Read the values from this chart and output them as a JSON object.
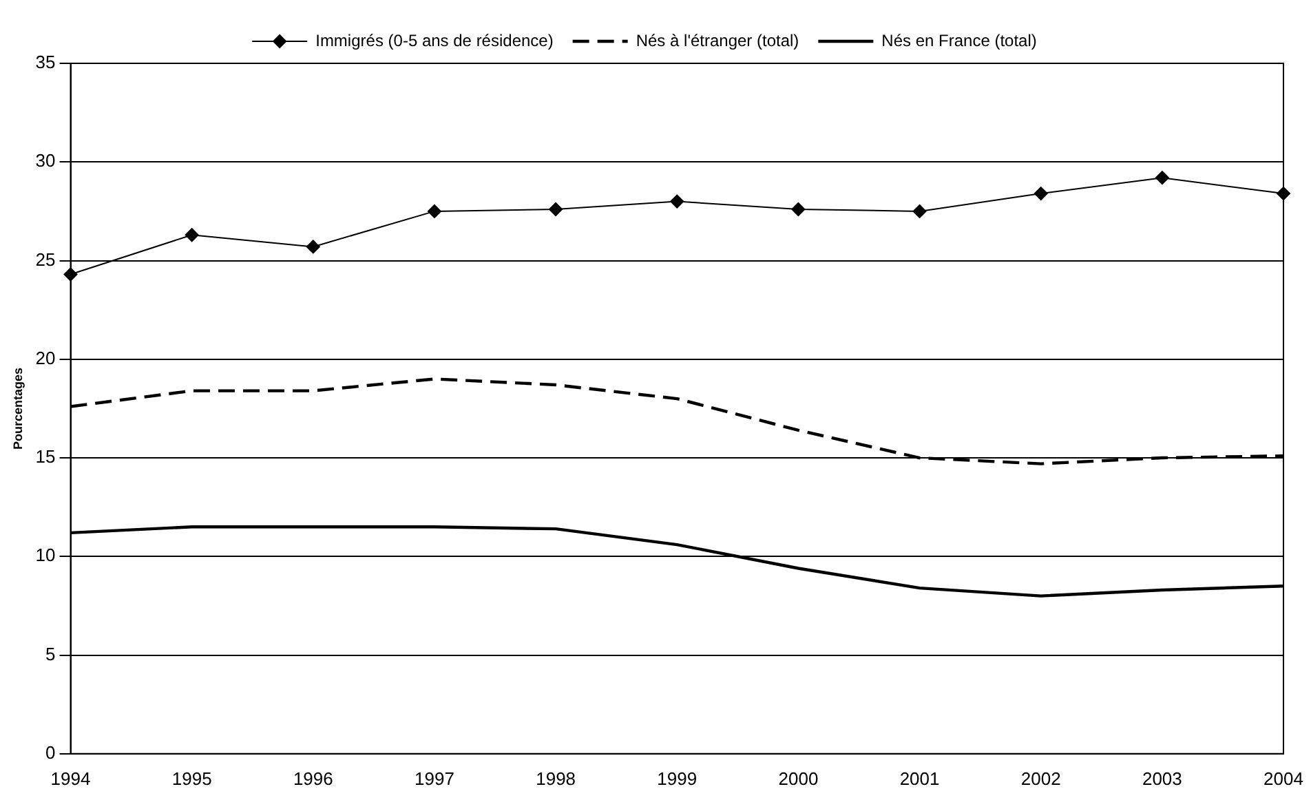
{
  "chart_data": {
    "type": "line",
    "ylabel": "Pourcentages",
    "categories": [
      "1994",
      "1995",
      "1996",
      "1997",
      "1998",
      "1999",
      "2000",
      "2001",
      "2002",
      "2003",
      "2004"
    ],
    "series": [
      {
        "name": "Immigrés (0-5 ans de résidence)",
        "color": "#000000",
        "marker": "diamond",
        "line_style": "solid",
        "values": [
          24.3,
          26.3,
          25.7,
          27.5,
          27.6,
          28.0,
          27.6,
          27.5,
          28.4,
          29.2,
          28.4
        ]
      },
      {
        "name": "Nés à l'étranger (total)",
        "color": "#000000",
        "marker": "none",
        "line_style": "dashed",
        "values": [
          17.6,
          18.4,
          18.4,
          19.0,
          18.7,
          18.0,
          16.4,
          15.0,
          14.7,
          15.0,
          15.1
        ]
      },
      {
        "name": "Nés en France (total)",
        "color": "#000000",
        "marker": "none",
        "line_style": "solid",
        "values": [
          11.2,
          11.5,
          11.5,
          11.5,
          11.4,
          10.6,
          9.4,
          8.4,
          8.0,
          8.3,
          8.5
        ]
      }
    ],
    "ylim": [
      0,
      35
    ],
    "yticks": [
      0,
      5,
      10,
      15,
      20,
      25,
      30,
      35
    ],
    "grid": "y",
    "legend": "top"
  }
}
